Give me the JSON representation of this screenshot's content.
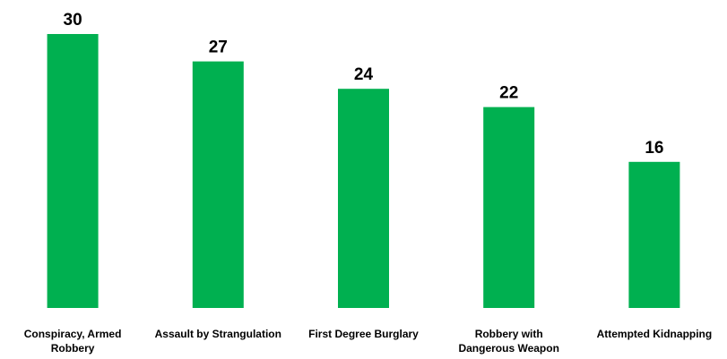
{
  "chart_data": {
    "type": "bar",
    "title": "",
    "xlabel": "",
    "ylabel": "",
    "categories": [
      [
        "Conspiracy, Armed",
        "Robbery"
      ],
      [
        "Assault by Strangulation"
      ],
      [
        "First Degree Burglary"
      ],
      [
        "Robbery with",
        "Dangerous Weapon"
      ],
      [
        "Attempted Kidnapping"
      ]
    ],
    "values": [
      30,
      27,
      24,
      22,
      16
    ],
    "value_labels": [
      "30",
      "27",
      "24",
      "22",
      "16"
    ],
    "ylim": [
      0,
      30
    ],
    "grid": false,
    "legend": "none",
    "bar_color": "#00b050"
  }
}
